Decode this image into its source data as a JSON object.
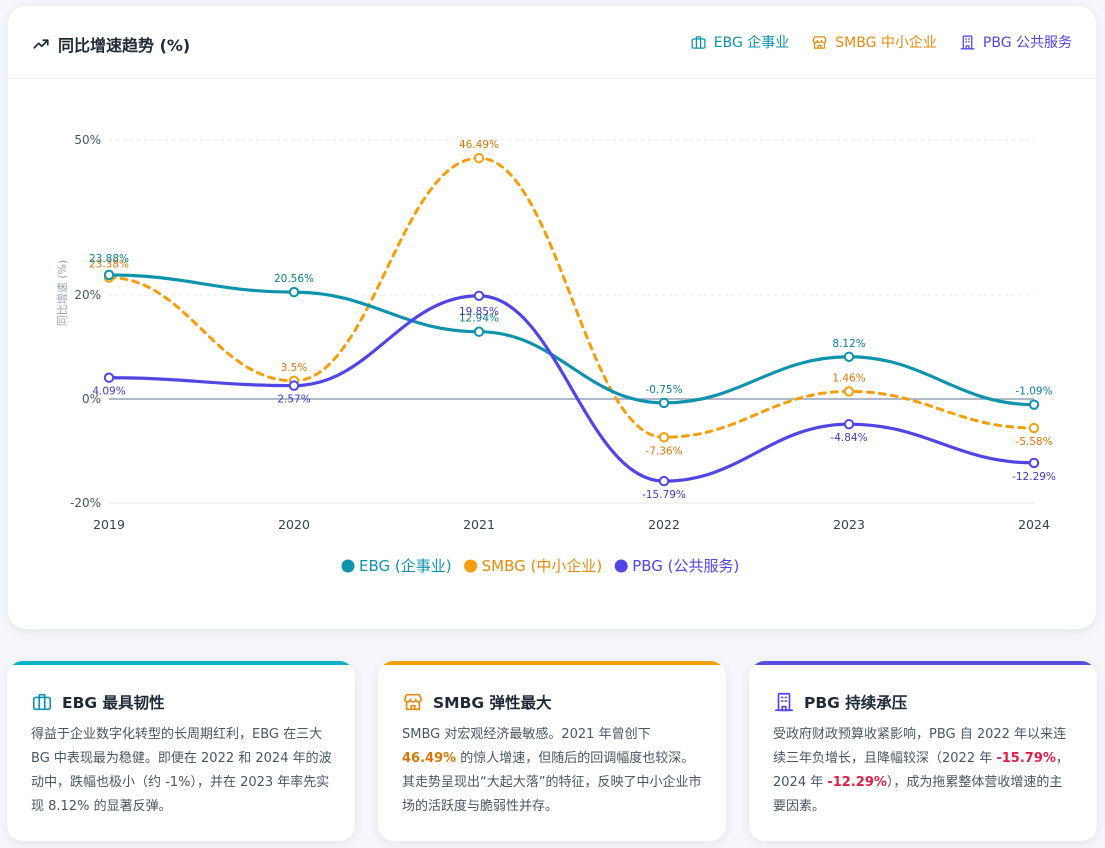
{
  "chart": {
    "title": "同比增速趋势 (%)",
    "header_legend": [
      {
        "label": "EBG 企事业",
        "color": "#0e93ad"
      },
      {
        "label": "SMBG 中小企业",
        "color": "#e58a0b"
      },
      {
        "label": "PBG 公共服务",
        "color": "#4f46e5"
      }
    ]
  },
  "chart_data": {
    "type": "line",
    "title": "同比增速趋势 (%)",
    "ylabel": "同比增速 (%)",
    "xlabel": "",
    "categories": [
      "2019",
      "2020",
      "2021",
      "2022",
      "2023",
      "2024"
    ],
    "y_ticks": [
      "50%",
      "20%",
      "0%",
      "-20%"
    ],
    "y_tick_values": [
      50,
      20,
      0,
      -20
    ],
    "ylim": [
      -20,
      50
    ],
    "series": [
      {
        "key": "ebg",
        "name": "EBG (企事业)",
        "color": "#0e93ad",
        "dashed": false,
        "values": [
          23.88,
          20.56,
          12.94,
          -0.75,
          8.12,
          -1.09
        ],
        "labels": [
          "23.88%",
          "20.56%",
          "12.94%",
          "-0.75%",
          "8.12%",
          "-1.09%"
        ]
      },
      {
        "key": "smbg",
        "name": "SMBG (中小企业)",
        "color": "#f59e0b",
        "dashed": true,
        "values": [
          23.38,
          3.5,
          46.49,
          -7.36,
          1.46,
          -5.58
        ],
        "labels": [
          "23.38%",
          "3.5%",
          "46.49%",
          "-7.36%",
          "1.46%",
          "-5.58%"
        ]
      },
      {
        "key": "pbg",
        "name": "PBG (公共服务)",
        "color": "#4f46e5",
        "dashed": false,
        "values": [
          4.09,
          2.57,
          19.85,
          -15.79,
          -4.84,
          -12.29
        ],
        "labels": [
          "4.09%",
          "2.57%",
          "19.85%",
          "-15.79%",
          "-4.84%",
          "-12.29%"
        ]
      }
    ],
    "legend_position": "bottom"
  },
  "cards": [
    {
      "title": "EBG 最具韧性",
      "color": "#0e93ad",
      "body": "得益于企业数字化转型的长周期红利，EBG 在三大 BG 中表现最为稳健。即便在 2022 和 2024 年的波动中，跌幅也极小（约 -1%），并在 2023 年率先实现 8.12% 的显著反弹。"
    },
    {
      "title": "SMBG 弹性最大",
      "color": "#e58a0b",
      "body_a": "SMBG 对宏观经济最敏感。2021 年曾创下 ",
      "body_b": "46.49%",
      "body_c": " 的惊人增速，但随后的回调幅度也较深。其走势呈现出“大起大落”的特征，反映了中小企业市场的活跃度与脆弱性并存。"
    },
    {
      "title": "PBG 持续承压",
      "color": "#4f46e5",
      "body_a": "受政府财政预算收紧影响，PBG 自 2022 年以来连续三年负增长，且降幅较深（2022 年 ",
      "body_b": "-15.79%",
      "body_c": "，2024 年 ",
      "body_d": "-12.29%",
      "body_e": "），成为拖累整体营收增速的主要因素。"
    }
  ]
}
